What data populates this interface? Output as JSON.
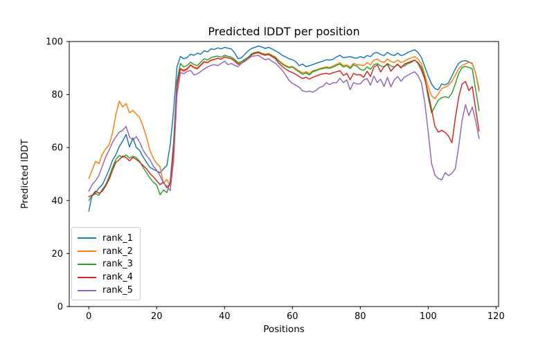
{
  "figure": {
    "background_color": "#ffffff",
    "text_color": "#000000"
  },
  "chart_data": {
    "type": "line",
    "title": "Predicted lDDT per position",
    "xlabel": "Positions",
    "ylabel": "Predicted lDDT",
    "xlim": [
      -5.75,
      120.75
    ],
    "ylim": [
      0,
      100
    ],
    "xticks": [
      0,
      20,
      40,
      60,
      80,
      100,
      120
    ],
    "yticks": [
      0,
      20,
      40,
      60,
      80,
      100
    ],
    "grid": false,
    "legend_position": "lower left",
    "x_start": 0,
    "x_step": 1,
    "series": [
      {
        "name": "rank_1",
        "color": "#1f77b4",
        "values": [
          36.0,
          42.0,
          43.0,
          44.7,
          46.0,
          48.7,
          51.7,
          55.2,
          57.3,
          60.4,
          62.5,
          64.9,
          60.2,
          63.6,
          60.0,
          58.9,
          56.5,
          54.5,
          52.5,
          51.8,
          51.2,
          50.5,
          51.9,
          53.2,
          61.0,
          74.0,
          90.5,
          94.3,
          93.5,
          94.0,
          95.2,
          94.8,
          95.6,
          95.2,
          96.5,
          96.1,
          97.2,
          97.0,
          97.6,
          97.2,
          97.8,
          97.5,
          97.2,
          95.7,
          93.5,
          93.9,
          95.2,
          96.5,
          97.4,
          97.8,
          98.3,
          97.9,
          97.4,
          97.8,
          97.2,
          96.5,
          95.8,
          94.8,
          94.2,
          93.5,
          93.1,
          92.4,
          90.9,
          91.5,
          90.5,
          90.9,
          91.3,
          91.8,
          92.2,
          92.6,
          93.1,
          93.0,
          93.3,
          94.2,
          94.8,
          93.9,
          94.1,
          94.3,
          93.9,
          93.7,
          94.3,
          93.8,
          94.7,
          94.3,
          95.6,
          95.9,
          95.1,
          94.7,
          95.9,
          95.1,
          94.7,
          95.6,
          94.7,
          95.1,
          95.9,
          96.4,
          96.9,
          95.9,
          94.0,
          90.5,
          87.0,
          84.0,
          82.2,
          81.8,
          84.0,
          83.6,
          84.4,
          87.0,
          89.6,
          91.8,
          92.6,
          92.8,
          92.3,
          91.8,
          87.9,
          82.0
        ]
      },
      {
        "name": "rank_2",
        "color": "#ff7f0e",
        "values": [
          48.3,
          51.5,
          54.8,
          53.9,
          57.5,
          59.5,
          61.0,
          65.5,
          72.5,
          77.5,
          75.3,
          76.6,
          73.1,
          74.0,
          72.6,
          71.3,
          68.0,
          64.0,
          59.0,
          56.0,
          54.0,
          52.8,
          46.5,
          48.0,
          45.5,
          58.0,
          82.0,
          89.5,
          88.7,
          89.5,
          91.0,
          90.0,
          89.6,
          91.0,
          92.2,
          92.0,
          92.8,
          93.2,
          93.7,
          93.3,
          94.1,
          93.8,
          93.5,
          92.6,
          91.5,
          91.9,
          92.9,
          93.7,
          95.1,
          95.6,
          96.2,
          95.6,
          95.2,
          95.5,
          94.8,
          94.2,
          92.8,
          91.8,
          91.0,
          90.4,
          90.6,
          89.7,
          88.9,
          88.2,
          88.6,
          87.9,
          89.0,
          89.3,
          89.8,
          90.1,
          90.4,
          90.2,
          90.8,
          91.4,
          92.0,
          90.9,
          91.2,
          90.3,
          91.8,
          91.2,
          91.2,
          90.9,
          92.1,
          91.2,
          93.0,
          93.4,
          92.5,
          92.1,
          93.4,
          92.5,
          92.1,
          93.0,
          92.1,
          92.5,
          93.4,
          93.8,
          94.3,
          93.4,
          91.7,
          87.5,
          83.0,
          79.5,
          78.4,
          80.3,
          82.3,
          82.8,
          83.5,
          85.0,
          87.3,
          89.8,
          91.0,
          91.6,
          92.2,
          91.6,
          88.0,
          81.2
        ]
      },
      {
        "name": "rank_3",
        "color": "#2ca02c",
        "values": [
          40.0,
          41.8,
          42.6,
          42.0,
          44.2,
          46.0,
          49.0,
          52.5,
          55.5,
          57.0,
          56.3,
          57.2,
          56.0,
          56.7,
          56.2,
          54.8,
          52.5,
          50.5,
          48.5,
          47.0,
          45.9,
          42.2,
          44.0,
          43.0,
          47.0,
          62.0,
          85.0,
          91.7,
          90.4,
          91.0,
          92.2,
          91.3,
          90.9,
          92.2,
          93.5,
          93.0,
          93.9,
          94.3,
          94.5,
          94.1,
          94.8,
          94.4,
          94.1,
          93.2,
          92.0,
          92.4,
          93.3,
          94.1,
          95.4,
          95.9,
          96.0,
          95.4,
          95.0,
          95.3,
          94.6,
          93.9,
          92.6,
          91.5,
          90.7,
          90.1,
          90.4,
          89.4,
          88.5,
          87.6,
          88.2,
          87.4,
          88.6,
          89.0,
          89.5,
          89.8,
          90.1,
          89.9,
          90.4,
          91.0,
          91.5,
          90.4,
          90.8,
          89.8,
          91.2,
          90.7,
          89.5,
          89.1,
          90.4,
          89.5,
          91.2,
          91.7,
          90.8,
          90.4,
          91.7,
          90.8,
          90.4,
          91.2,
          90.4,
          90.8,
          91.7,
          92.1,
          93.0,
          92.1,
          90.4,
          86.5,
          79.0,
          73.1,
          75.5,
          77.9,
          78.8,
          79.2,
          78.8,
          80.5,
          84.0,
          88.0,
          90.2,
          90.6,
          90.2,
          89.7,
          81.8,
          73.9
        ]
      },
      {
        "name": "rank_4",
        "color": "#d62728",
        "values": [
          41.4,
          42.0,
          43.5,
          42.8,
          43.5,
          45.5,
          48.0,
          51.5,
          54.5,
          55.4,
          56.8,
          56.2,
          55.0,
          56.3,
          55.5,
          54.5,
          53.2,
          52.0,
          50.2,
          49.0,
          47.5,
          46.0,
          47.0,
          44.8,
          46.5,
          60.0,
          84.0,
          89.8,
          89.1,
          89.8,
          91.2,
          90.3,
          89.9,
          91.2,
          92.4,
          92.1,
          93.0,
          93.3,
          93.7,
          93.3,
          94.2,
          93.8,
          93.5,
          92.6,
          91.4,
          91.8,
          92.7,
          93.6,
          95.0,
          95.5,
          95.8,
          95.2,
          94.8,
          95.1,
          94.3,
          93.5,
          91.8,
          90.6,
          89.6,
          88.8,
          88.3,
          87.6,
          86.8,
          86.0,
          86.5,
          85.8,
          86.5,
          87.0,
          87.5,
          87.8,
          88.0,
          87.7,
          88.3,
          88.6,
          89.0,
          87.2,
          88.0,
          85.6,
          88.0,
          87.4,
          87.5,
          86.5,
          88.8,
          86.8,
          90.3,
          91.2,
          88.5,
          90.5,
          91.5,
          88.8,
          90.3,
          91.5,
          90.0,
          91.5,
          92.0,
          92.5,
          93.0,
          91.8,
          89.3,
          85.8,
          80.5,
          74.4,
          68.0,
          65.8,
          66.5,
          65.7,
          64.3,
          61.8,
          71.0,
          79.0,
          84.0,
          84.9,
          81.5,
          83.0,
          74.5,
          66.2
        ]
      },
      {
        "name": "rank_5",
        "color": "#9467bd",
        "values": [
          43.5,
          46.0,
          47.5,
          49.5,
          53.0,
          56.5,
          59.0,
          62.0,
          64.0,
          65.8,
          66.5,
          68.0,
          64.0,
          62.8,
          64.1,
          62.0,
          59.0,
          57.0,
          55.4,
          53.0,
          51.5,
          49.4,
          46.5,
          45.5,
          43.7,
          55.0,
          80.0,
          88.3,
          87.8,
          88.7,
          89.1,
          87.4,
          87.8,
          88.7,
          89.6,
          90.4,
          91.0,
          91.3,
          90.9,
          91.7,
          92.6,
          91.3,
          91.7,
          91.0,
          90.5,
          91.8,
          92.5,
          93.5,
          94.4,
          94.6,
          94.8,
          93.9,
          93.1,
          93.5,
          92.5,
          91.8,
          90.5,
          89.2,
          87.4,
          85.3,
          84.2,
          83.5,
          82.7,
          81.4,
          81.0,
          81.3,
          80.9,
          81.6,
          82.7,
          83.1,
          84.5,
          83.7,
          84.5,
          84.4,
          86.2,
          84.5,
          85.5,
          81.8,
          84.5,
          84.0,
          84.0,
          85.5,
          86.0,
          83.5,
          87.0,
          84.5,
          85.8,
          83.0,
          86.5,
          82.9,
          85.5,
          86.8,
          85.0,
          86.5,
          87.3,
          88.0,
          88.6,
          87.2,
          84.5,
          77.0,
          66.0,
          54.0,
          49.6,
          48.3,
          47.8,
          50.5,
          49.4,
          50.3,
          52.0,
          60.5,
          70.3,
          76.2,
          72.0,
          75.3,
          70.0,
          63.4
        ]
      }
    ]
  }
}
